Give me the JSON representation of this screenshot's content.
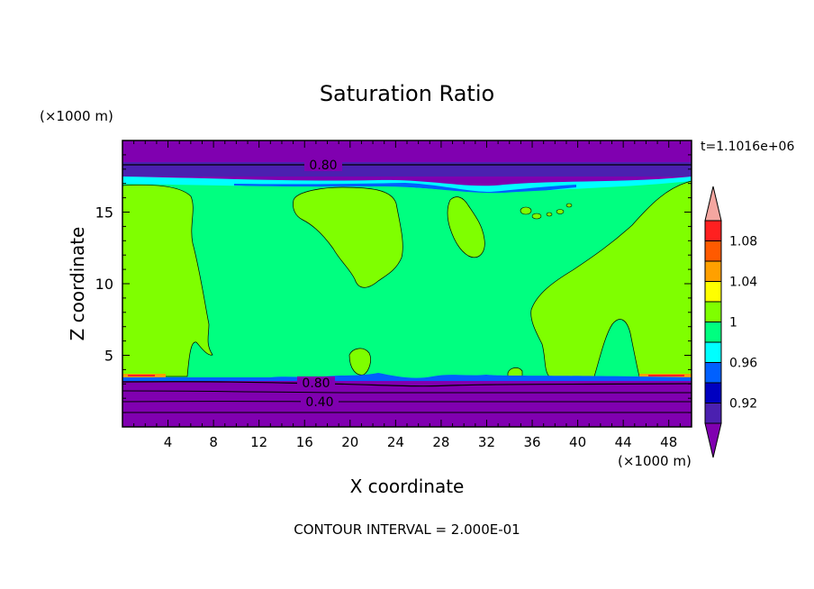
{
  "chart_data": {
    "type": "heatmap",
    "title": "Saturation Ratio",
    "xlabel": "X coordinate",
    "ylabel": "Z coordinate",
    "x_unit": "(×1000 m)",
    "y_unit": "(×1000 m)",
    "time_label": "t=1.1016e+06",
    "footer": "CONTOUR INTERVAL = 2.000E-01",
    "xlim": [
      0,
      50
    ],
    "ylim": [
      0,
      20
    ],
    "x_ticks": [
      4,
      8,
      12,
      16,
      20,
      24,
      28,
      32,
      36,
      40,
      44,
      48
    ],
    "y_ticks": [
      5,
      10,
      15
    ],
    "contour_labels": [
      "0.80",
      "0.80",
      "0.40"
    ],
    "colorbar": {
      "labels": [
        "1.08",
        "1.04",
        "1",
        "0.96",
        "0.92"
      ],
      "bins": [
        {
          "color": "#f4a6a0",
          "range": "> 1.10"
        },
        {
          "color": "#ff2020",
          "range": "1.08 – 1.10"
        },
        {
          "color": "#ff5a00",
          "range": "1.06 – 1.08"
        },
        {
          "color": "#ffa000",
          "range": "1.04 – 1.06"
        },
        {
          "color": "#ffff00",
          "range": "1.02 – 1.04"
        },
        {
          "color": "#7fff00",
          "range": "1.00 – 1.02"
        },
        {
          "color": "#00ff80",
          "range": "0.98 – 1.00"
        },
        {
          "color": "#00ffff",
          "range": "0.96 – 0.98"
        },
        {
          "color": "#0060ff",
          "range": "0.94 – 0.96"
        },
        {
          "color": "#0000c0",
          "range": "0.92 – 0.94"
        },
        {
          "color": "#4b20b0",
          "range": "0.90 – 0.92"
        },
        {
          "color": "#8000b0",
          "range": "< 0.90"
        }
      ]
    },
    "regions": [
      {
        "name": "upper-dry-layer",
        "color": "#8000b0",
        "z_range": [
          17.5,
          20
        ],
        "x_range": [
          0,
          50
        ]
      },
      {
        "name": "mid-moist-layer",
        "color": "#00ff80",
        "z_range": [
          3.4,
          17.0
        ],
        "x_range": [
          0,
          50
        ]
      },
      {
        "name": "lower-dry-layer",
        "color": "#8000b0",
        "z_range": [
          0,
          3.3
        ],
        "x_range": [
          0,
          50
        ]
      }
    ]
  }
}
